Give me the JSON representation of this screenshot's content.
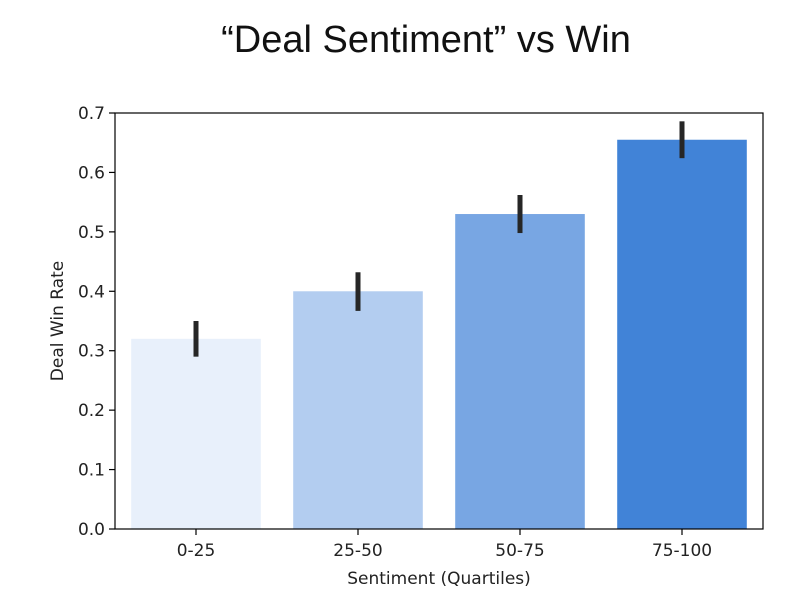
{
  "chart_data": {
    "type": "bar",
    "title": "“Deal Sentiment” vs Win",
    "xlabel": "Sentiment (Quartiles)",
    "ylabel": "Deal Win Rate",
    "categories": [
      "0-25",
      "25-50",
      "50-75",
      "75-100"
    ],
    "values": [
      0.32,
      0.4,
      0.53,
      0.655
    ],
    "error_low": [
      0.29,
      0.367,
      0.498,
      0.624
    ],
    "error_high": [
      0.35,
      0.432,
      0.562,
      0.686
    ],
    "ylim": [
      0,
      0.7
    ],
    "yticks": [
      "0.0",
      "0.1",
      "0.2",
      "0.3",
      "0.4",
      "0.5",
      "0.6",
      "0.7"
    ],
    "grid": false,
    "colors": [
      "#e8f0fb",
      "#b3cdf0",
      "#78a6e3",
      "#4183d7"
    ]
  }
}
